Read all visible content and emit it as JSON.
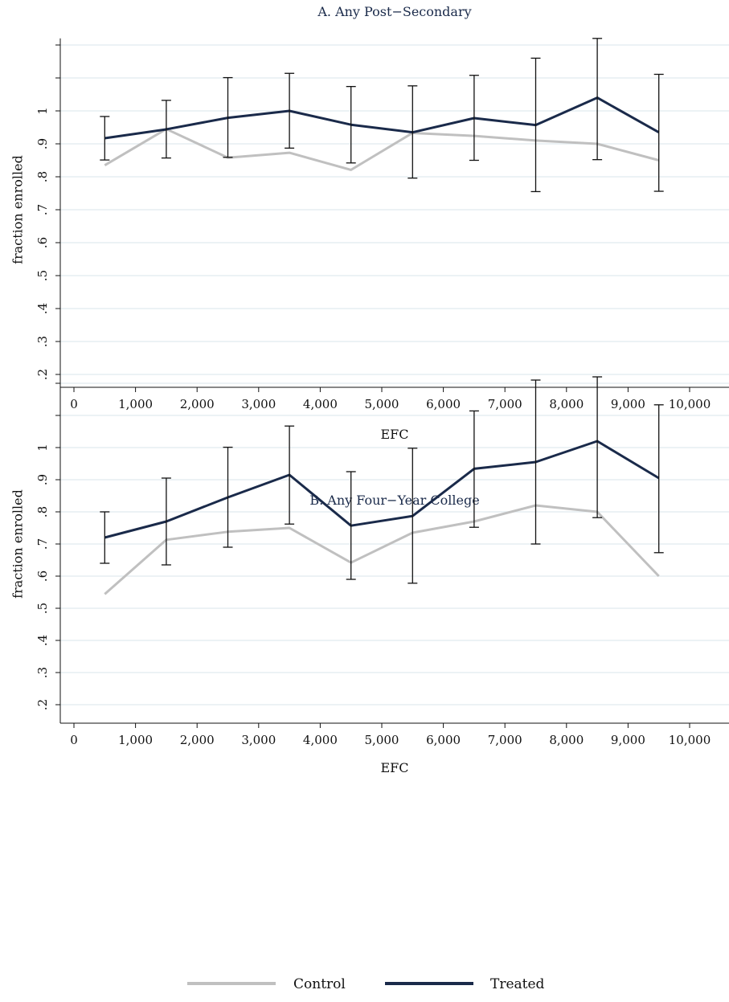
{
  "chart_data": [
    {
      "type": "line",
      "title": "A. Any Post−Secondary",
      "xlabel": "EFC",
      "ylabel": "fraction enrolled",
      "x": [
        500,
        1500,
        2500,
        3500,
        4500,
        5500,
        6500,
        7500,
        8500,
        9500
      ],
      "xlim": [
        -500,
        10500
      ],
      "ylim": [
        0.17,
        1.22
      ],
      "x_ticks": [
        {
          "value": 0,
          "label": "0"
        },
        {
          "value": 1000,
          "label": "1,000"
        },
        {
          "value": 2000,
          "label": "2,000"
        },
        {
          "value": 3000,
          "label": "3,000"
        },
        {
          "value": 4000,
          "label": "4,000"
        },
        {
          "value": 5000,
          "label": "5,000"
        },
        {
          "value": 6000,
          "label": "6,000"
        },
        {
          "value": 7000,
          "label": "7,000"
        },
        {
          "value": 8000,
          "label": "8,000"
        },
        {
          "value": 9000,
          "label": "9,000"
        },
        {
          "value": 10000,
          "label": "10,000"
        }
      ],
      "y_ticks": [
        {
          "value": 0.2,
          "label": ".2"
        },
        {
          "value": 0.3,
          "label": ".3"
        },
        {
          "value": 0.4,
          "label": ".4"
        },
        {
          "value": 0.5,
          "label": ".5"
        },
        {
          "value": 0.6,
          "label": ".6"
        },
        {
          "value": 0.7,
          "label": ".7"
        },
        {
          "value": 0.8,
          "label": ".8"
        },
        {
          "value": 0.9,
          "label": ".9"
        },
        {
          "value": 1.0,
          "label": "1"
        },
        {
          "value": 1.1,
          "label": ""
        },
        {
          "value": 1.2,
          "label": ""
        }
      ],
      "grid": true,
      "series": [
        {
          "name": "Control",
          "color": "#c0c0c0",
          "values": [
            0.835,
            0.945,
            0.858,
            0.873,
            0.821,
            0.933,
            0.924,
            0.91,
            0.9,
            0.85
          ]
        },
        {
          "name": "Treated",
          "color": "#1a2a4a",
          "values": [
            0.917,
            0.944,
            0.979,
            1.0,
            0.958,
            0.935,
            0.978,
            0.957,
            1.04,
            0.935
          ],
          "ci_low": [
            0.851,
            0.857,
            0.859,
            0.887,
            0.842,
            0.796,
            0.85,
            0.755,
            0.852,
            0.756
          ],
          "ci_high": [
            0.983,
            1.032,
            1.101,
            1.114,
            1.074,
            1.076,
            1.108,
            1.16,
            1.22,
            1.111
          ]
        }
      ]
    },
    {
      "type": "line",
      "title": "B. Any Four−Year College",
      "xlabel": "EFC",
      "ylabel": "fraction enrolled",
      "x": [
        500,
        1500,
        2500,
        3500,
        4500,
        5500,
        6500,
        7500,
        8500,
        9500
      ],
      "xlim": [
        -500,
        10500
      ],
      "ylim": [
        0.17,
        1.22
      ],
      "x_ticks": [
        {
          "value": 0,
          "label": "0"
        },
        {
          "value": 1000,
          "label": "1,000"
        },
        {
          "value": 2000,
          "label": "2,000"
        },
        {
          "value": 3000,
          "label": "3,000"
        },
        {
          "value": 4000,
          "label": "4,000"
        },
        {
          "value": 5000,
          "label": "5,000"
        },
        {
          "value": 6000,
          "label": "6,000"
        },
        {
          "value": 7000,
          "label": "7,000"
        },
        {
          "value": 8000,
          "label": "8,000"
        },
        {
          "value": 9000,
          "label": "9,000"
        },
        {
          "value": 10000,
          "label": "10,000"
        }
      ],
      "y_ticks": [
        {
          "value": 0.2,
          "label": ".2"
        },
        {
          "value": 0.3,
          "label": ".3"
        },
        {
          "value": 0.4,
          "label": ".4"
        },
        {
          "value": 0.5,
          "label": ".5"
        },
        {
          "value": 0.6,
          "label": ".6"
        },
        {
          "value": 0.7,
          "label": ".7"
        },
        {
          "value": 0.8,
          "label": ".8"
        },
        {
          "value": 0.9,
          "label": ".9"
        },
        {
          "value": 1.0,
          "label": "1"
        },
        {
          "value": 1.1,
          "label": ""
        },
        {
          "value": 1.2,
          "label": ""
        }
      ],
      "grid": true,
      "series": [
        {
          "name": "Control",
          "color": "#c0c0c0",
          "values": [
            0.544,
            0.713,
            0.738,
            0.75,
            0.642,
            0.735,
            0.77,
            0.82,
            0.8,
            0.6
          ]
        },
        {
          "name": "Treated",
          "color": "#1a2a4a",
          "values": [
            0.72,
            0.77,
            0.845,
            0.915,
            0.757,
            0.787,
            0.934,
            0.955,
            1.02,
            0.905
          ],
          "ci_low": [
            0.64,
            0.635,
            0.69,
            0.762,
            0.59,
            0.578,
            0.752,
            0.7,
            0.782,
            0.673
          ],
          "ci_high": [
            0.8,
            0.905,
            1.001,
            1.067,
            0.925,
            0.998,
            1.114,
            1.21,
            1.22,
            1.133
          ]
        }
      ]
    }
  ],
  "legend": {
    "placement": "bottom-center",
    "items": [
      {
        "label": "Control",
        "color": "#c0c0c0"
      },
      {
        "label": "Treated",
        "color": "#1a2a4a"
      }
    ]
  }
}
